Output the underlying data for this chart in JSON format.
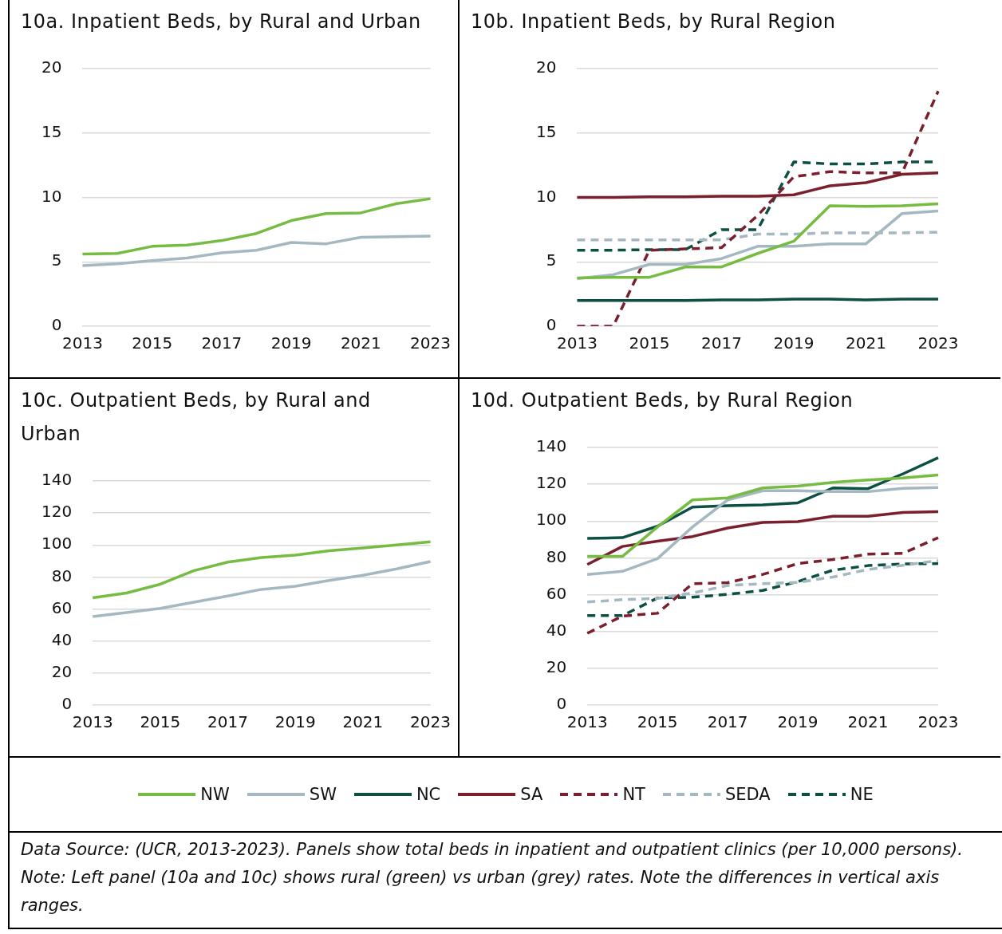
{
  "chart_data": [
    {
      "type": "line",
      "title": "10a. Inpatient Beds, by Rural and Urban",
      "categories": [
        "2013",
        null,
        "2015",
        null,
        "2017",
        null,
        "2019",
        null,
        "2021",
        null,
        "2023"
      ],
      "ylim": [
        0,
        20
      ],
      "yticks": [
        0,
        5,
        10,
        15,
        20
      ],
      "grid": "y",
      "series": [
        {
          "color": "#76bc43",
          "line_style": "solid",
          "values": [
            5.6,
            5.65,
            6.2,
            6.3,
            6.65,
            7.2,
            8.2,
            8.75,
            8.8,
            9.5,
            9.9
          ]
        },
        {
          "color": "#a3b8c0",
          "line_style": "solid",
          "values": [
            4.7,
            4.85,
            5.1,
            5.3,
            5.7,
            5.9,
            6.5,
            6.4,
            6.9,
            6.95,
            7.0
          ]
        }
      ]
    },
    {
      "type": "line",
      "title": "10b. Inpatient Beds, by Rural Region",
      "categories": [
        "2013",
        null,
        "2015",
        null,
        "2017",
        null,
        "2019",
        null,
        "2021",
        null,
        "2023"
      ],
      "ylim": [
        0,
        20
      ],
      "yticks": [
        0,
        5,
        10,
        15,
        20
      ],
      "grid": "y",
      "legend": "bottom",
      "series": [
        {
          "name": "NW",
          "color": "#76bc43",
          "line_style": "solid",
          "values": [
            3.75,
            3.8,
            3.8,
            4.6,
            4.6,
            5.65,
            6.6,
            9.35,
            9.3,
            9.35,
            9.5
          ]
        },
        {
          "name": "SW",
          "color": "#a3b8c0",
          "line_style": "solid",
          "values": [
            3.7,
            4.0,
            4.8,
            4.8,
            5.25,
            6.2,
            6.2,
            6.4,
            6.4,
            8.75,
            8.95
          ]
        },
        {
          "name": "NC",
          "color": "#0d4f42",
          "line_style": "solid",
          "values": [
            2.0,
            2.0,
            2.0,
            2.0,
            2.05,
            2.05,
            2.1,
            2.1,
            2.05,
            2.1,
            2.1
          ]
        },
        {
          "name": "SA",
          "color": "#7a1f2e",
          "line_style": "solid",
          "values": [
            10.0,
            10.0,
            10.05,
            10.05,
            10.1,
            10.1,
            10.2,
            10.9,
            11.15,
            11.8,
            11.9
          ]
        },
        {
          "name": "NT",
          "color": "#7a1f2e",
          "line_style": "dashed",
          "values": [
            0,
            0,
            5.9,
            6.0,
            6.1,
            8.6,
            11.6,
            12.0,
            11.9,
            11.9,
            18.25
          ]
        },
        {
          "name": "SEDA",
          "color": "#a3b8c0",
          "line_style": "dashed",
          "values": [
            6.7,
            6.7,
            6.7,
            6.7,
            6.7,
            7.15,
            7.15,
            7.25,
            7.25,
            7.25,
            7.3
          ]
        },
        {
          "name": "NE",
          "color": "#0d4f42",
          "line_style": "dashed",
          "values": [
            5.9,
            5.9,
            5.95,
            5.95,
            7.5,
            7.5,
            12.75,
            12.6,
            12.6,
            12.75,
            12.75
          ]
        }
      ]
    },
    {
      "type": "line",
      "title": "10c. Outpatient Beds, by Rural and Urban",
      "categories": [
        "2013",
        null,
        "2015",
        null,
        "2017",
        null,
        "2019",
        null,
        "2021",
        null,
        "2023"
      ],
      "ylim": [
        0,
        140
      ],
      "yticks": [
        0,
        20,
        40,
        60,
        80,
        100,
        120,
        140
      ],
      "grid": "y",
      "series": [
        {
          "color": "#76bc43",
          "line_style": "solid",
          "values": [
            67,
            70,
            75.5,
            84,
            89.3,
            92.2,
            93.7,
            96.4,
            98.1,
            100,
            102
          ]
        },
        {
          "color": "#a3b8c0",
          "line_style": "solid",
          "values": [
            55.3,
            57.8,
            60.4,
            64.3,
            68.1,
            72.3,
            74.2,
            77.8,
            81.1,
            85.1,
            89.7
          ]
        }
      ]
    },
    {
      "type": "line",
      "title": "10d. Outpatient Beds, by Rural Region",
      "categories": [
        "2013",
        null,
        "2015",
        null,
        "2017",
        null,
        "2019",
        null,
        "2021",
        null,
        "2023"
      ],
      "ylim": [
        0,
        140
      ],
      "yticks": [
        0,
        20,
        40,
        60,
        80,
        100,
        120,
        140
      ],
      "grid": "y",
      "legend": "bottom",
      "annotations": [
        "Data Source: (UCR, 2013-2023). Panels show total beds in inpatient and outpatient clinics (per 10,000 persons). Note: Left panel (10a and 10c) shows rural (green) vs urban (grey) rates. Note the differences in vertical axis ranges."
      ],
      "series": [
        {
          "name": "NW",
          "color": "#76bc43",
          "line_style": "solid",
          "values": [
            80.8,
            80.8,
            96.8,
            111.5,
            112.6,
            118,
            119,
            121,
            122.3,
            123.4,
            125
          ]
        },
        {
          "name": "SW",
          "color": "#a3b8c0",
          "line_style": "solid",
          "values": [
            71,
            72.7,
            79.6,
            96.8,
            111.5,
            116.5,
            116.5,
            116,
            116,
            117.8,
            118.2
          ]
        },
        {
          "name": "NC",
          "color": "#0d4f42",
          "line_style": "solid",
          "values": [
            90.6,
            91,
            97.2,
            107.6,
            108.4,
            108.8,
            109.9,
            118,
            117.6,
            125.7,
            134.4
          ]
        },
        {
          "name": "SA",
          "color": "#7a1f2e",
          "line_style": "solid",
          "values": [
            76.4,
            86.2,
            89.1,
            91.6,
            96.2,
            99.3,
            99.7,
            102.6,
            102.6,
            104.7,
            105.1
          ]
        },
        {
          "name": "NT",
          "color": "#7a1f2e",
          "line_style": "dashed",
          "values": [
            39,
            48.4,
            49.9,
            66,
            66.5,
            71,
            76.9,
            79.1,
            82,
            82.5,
            91
          ]
        },
        {
          "name": "SEDA",
          "color": "#a3b8c0",
          "line_style": "dashed",
          "values": [
            56,
            57.3,
            58,
            60.9,
            65,
            66,
            66.7,
            69.6,
            73.7,
            76,
            78.5
          ]
        },
        {
          "name": "NE",
          "color": "#0d4f42",
          "line_style": "dashed",
          "values": [
            48.6,
            48.6,
            58.2,
            58.6,
            60.2,
            62.3,
            67.1,
            73.3,
            75.8,
            76.7,
            76.9
          ]
        }
      ]
    }
  ]
}
